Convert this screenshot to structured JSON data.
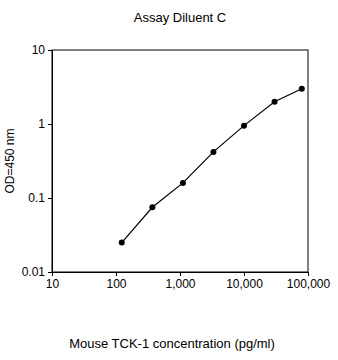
{
  "chart_data": {
    "type": "line",
    "title": "Assay Diluent C",
    "x_label": "Mouse TCK-1 concentration (pg/ml)",
    "y_label": "OD=450 nm",
    "x": [
      123,
      370,
      1111,
      3333,
      10000,
      30000,
      80000
    ],
    "values": [
      0.025,
      0.075,
      0.16,
      0.42,
      0.95,
      2.0,
      3.0
    ],
    "color": "#000000",
    "marker": "circle",
    "line_style": "solid",
    "log": true,
    "xlim": [
      10,
      100000
    ],
    "xticks": [
      10,
      100,
      {
        "value": 1000,
        "label": "1,000"
      },
      {
        "value": 10000,
        "label": "10,000"
      },
      {
        "value": 100000,
        "label": "100,000"
      }
    ],
    "ylim": [
      0.01,
      10
    ],
    "yticks": [
      0.01,
      0.1,
      1,
      10
    ],
    "grid": false
  }
}
